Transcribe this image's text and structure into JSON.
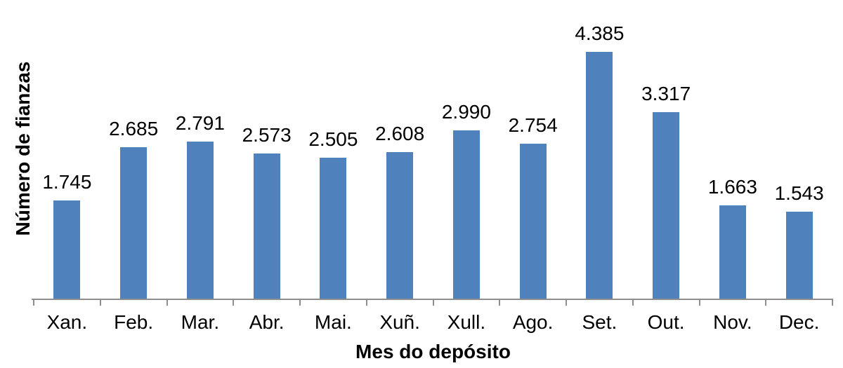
{
  "chart_data": {
    "type": "bar",
    "title": "",
    "xlabel": "Mes do depósito",
    "ylabel": "Número de fianzas",
    "categories": [
      "Xan.",
      "Feb.",
      "Mar.",
      "Abr.",
      "Mai.",
      "Xuñ.",
      "Xull.",
      "Ago.",
      "Set.",
      "Out.",
      "Nov.",
      "Dec."
    ],
    "values": [
      1745,
      2685,
      2791,
      2573,
      2505,
      2608,
      2990,
      2754,
      4385,
      3317,
      1663,
      1543
    ],
    "value_labels": [
      "1.745",
      "2.685",
      "2.791",
      "2.573",
      "2.505",
      "2.608",
      "2.990",
      "2.754",
      "4.385",
      "3.317",
      "1.663",
      "1.543"
    ],
    "ylim": [
      0,
      4385
    ],
    "grid": false,
    "legend": false,
    "bar_color": "#4F81BD",
    "axis_color": "#8E8E8E",
    "text_color": "#000000"
  }
}
